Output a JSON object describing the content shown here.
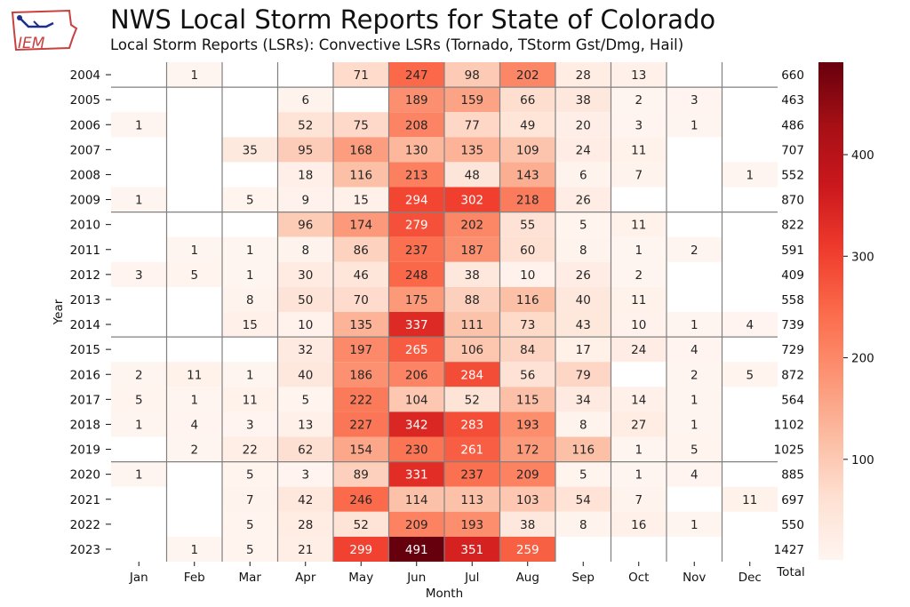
{
  "header": {
    "title": "NWS Local Storm Reports for State of Colorado",
    "subtitle": "Local Storm Reports (LSRs): Convective LSRs (Tornado, TStorm Gst/Dmg, Hail)",
    "logo_text": "IEM"
  },
  "chart_data": {
    "type": "heatmap",
    "title": "NWS Local Storm Reports for State of Colorado",
    "subtitle": "Local Storm Reports (LSRs): Convective LSRs (Tornado, TStorm Gst/Dmg, Hail)",
    "xlabel": "Month",
    "ylabel": "Year",
    "total_label": "Total",
    "months": [
      "Jan",
      "Feb",
      "Mar",
      "Apr",
      "May",
      "Jun",
      "Jul",
      "Aug",
      "Sep",
      "Oct",
      "Nov",
      "Dec"
    ],
    "years": [
      "2004",
      "2005",
      "2006",
      "2007",
      "2008",
      "2009",
      "2010",
      "2011",
      "2012",
      "2013",
      "2014",
      "2015",
      "2016",
      "2017",
      "2018",
      "2019",
      "2020",
      "2021",
      "2022",
      "2023"
    ],
    "values": [
      [
        null,
        1,
        null,
        null,
        71,
        247,
        98,
        202,
        28,
        13,
        null,
        null
      ],
      [
        null,
        null,
        null,
        6,
        null,
        189,
        159,
        66,
        38,
        2,
        3,
        null
      ],
      [
        1,
        null,
        null,
        52,
        75,
        208,
        77,
        49,
        20,
        3,
        1,
        null
      ],
      [
        null,
        null,
        35,
        95,
        168,
        130,
        135,
        109,
        24,
        11,
        null,
        null
      ],
      [
        null,
        null,
        null,
        18,
        116,
        213,
        48,
        143,
        6,
        7,
        null,
        1
      ],
      [
        1,
        null,
        5,
        9,
        15,
        294,
        302,
        218,
        26,
        null,
        null,
        null
      ],
      [
        null,
        null,
        null,
        96,
        174,
        279,
        202,
        55,
        5,
        11,
        null,
        null
      ],
      [
        null,
        1,
        1,
        8,
        86,
        237,
        187,
        60,
        8,
        1,
        2,
        null
      ],
      [
        3,
        5,
        1,
        30,
        46,
        248,
        38,
        10,
        26,
        2,
        null,
        null
      ],
      [
        null,
        null,
        8,
        50,
        70,
        175,
        88,
        116,
        40,
        11,
        null,
        null
      ],
      [
        null,
        null,
        15,
        10,
        135,
        337,
        111,
        73,
        43,
        10,
        1,
        4
      ],
      [
        null,
        null,
        null,
        32,
        197,
        265,
        106,
        84,
        17,
        24,
        4,
        null
      ],
      [
        2,
        11,
        1,
        40,
        186,
        206,
        284,
        56,
        79,
        null,
        2,
        5
      ],
      [
        5,
        1,
        11,
        5,
        222,
        104,
        52,
        115,
        34,
        14,
        1,
        null
      ],
      [
        1,
        4,
        3,
        13,
        227,
        342,
        283,
        193,
        8,
        27,
        1,
        null
      ],
      [
        null,
        2,
        22,
        62,
        154,
        230,
        261,
        172,
        116,
        1,
        5,
        null
      ],
      [
        1,
        null,
        5,
        3,
        89,
        331,
        237,
        209,
        5,
        1,
        4,
        null
      ],
      [
        null,
        null,
        7,
        42,
        246,
        114,
        113,
        103,
        54,
        7,
        null,
        11
      ],
      [
        null,
        null,
        5,
        28,
        52,
        209,
        193,
        38,
        8,
        16,
        1,
        null
      ],
      [
        null,
        1,
        5,
        21,
        299,
        491,
        351,
        259,
        null,
        null,
        null,
        null
      ]
    ],
    "totals": [
      660,
      463,
      486,
      707,
      552,
      870,
      822,
      591,
      409,
      558,
      739,
      729,
      872,
      564,
      1102,
      1025,
      885,
      697,
      550,
      1427
    ],
    "colorbar": {
      "min": 1,
      "max": 491,
      "ticks": [
        100,
        200,
        300,
        400
      ],
      "colormap": "Reds"
    },
    "decade_separators_after_years": [
      "2004",
      "2009",
      "2014",
      "2019"
    ]
  },
  "colors": {
    "low": "#fff5f0",
    "high": "#67000d",
    "grid": "#808080"
  }
}
